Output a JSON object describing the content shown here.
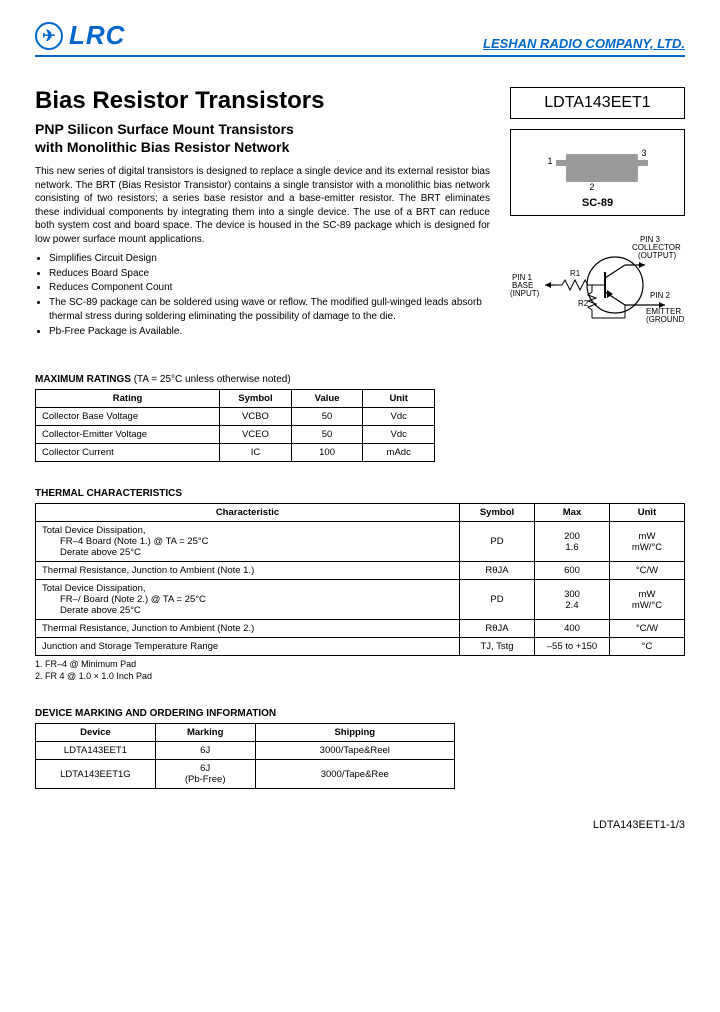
{
  "logo_text": "LRC",
  "company": "LESHAN RADIO COMPANY, LTD.",
  "title": "Bias Resistor Transistors",
  "subtitle1": "PNP Silicon Surface Mount Transistors",
  "subtitle2": "with Monolithic Bias Resistor Network",
  "part_number": "LDTA143EET1",
  "package_name": "SC-89",
  "body": "This new series of digital transistors is designed to replace a single device and its external resistor bias network. The BRT (Bias Resistor Transistor) contains a single transistor with a monolithic bias network consisting of two resistors; a series base resistor and a base-emitter resistor. The BRT eliminates these individual components by integrating them into a single device. The use of a BRT can reduce both system cost and board space. The device is housed in the SC-89 package which is designed for low power surface mount applications.",
  "bullets": [
    "Simplifies Circuit Design",
    "Reduces Board Space",
    "Reduces Component Count",
    "The SC-89 package can be soldered using wave or reflow. The modified gull-winged leads absorb thermal stress during soldering eliminating the possibility of damage to the die.",
    "Pb-Free Package is Available."
  ],
  "pin_labels": {
    "pin1a": "PIN 1",
    "pin1b": "BASE",
    "pin1c": "(INPUT)",
    "pin2a": "PIN 2",
    "pin2b": "EMITTER",
    "pin2c": "(GROUND)",
    "pin3a": "PIN 3",
    "pin3b": "COLLECTOR",
    "pin3c": "(OUTPUT)",
    "r1": "R1",
    "r2": "R2"
  },
  "ratings_title": "MAXIMUM RATINGS",
  "ratings_note": " (TA = 25°C unless otherwise noted)",
  "ratings_headers": [
    "Rating",
    "Symbol",
    "Value",
    "Unit"
  ],
  "ratings_rows": [
    [
      "Collector Base Voltage",
      "VCBO",
      "50",
      "Vdc"
    ],
    [
      "Collector-Emitter Voltage",
      "VCEO",
      "50",
      "Vdc"
    ],
    [
      "Collector Current",
      "IC",
      "100",
      "mAdc"
    ]
  ],
  "thermal_title": "THERMAL CHARACTERISTICS",
  "thermal_headers": [
    "Characteristic",
    "Symbol",
    "Max",
    "Unit"
  ],
  "thermal_rows": [
    {
      "c": "Total Device Dissipation,\n   FR–4 Board (Note 1.) @ TA = 25°C\n   Derate above 25°C",
      "s": "PD",
      "m": "200\n1.6",
      "u": "mW\nmW/°C"
    },
    {
      "c": "Thermal Resistance, Junction to Ambient (Note 1.)",
      "s": "RθJA",
      "m": "600",
      "u": "°C/W"
    },
    {
      "c": "Total Device Dissipation,\n   FR–/ Board (Note 2.) @ TA = 25°C\n   Derate above 25°C",
      "s": "PD",
      "m": "300\n2.4",
      "u": "mW\nmW/°C"
    },
    {
      "c": "Thermal Resistance, Junction to Ambient (Note 2.)",
      "s": "RθJA",
      "m": "400",
      "u": "°C/W"
    },
    {
      "c": "Junction and Storage Temperature Range",
      "s": "TJ, Tstg",
      "m": "–55 to +150",
      "u": "°C"
    }
  ],
  "footnote1": "1.  FR–4 @ Minimum Pad",
  "footnote2": "2.  FR  4 @ 1.0 × 1.0 Inch Pad",
  "marking_title": "DEVICE MARKING AND ORDERING INFORMATION",
  "marking_headers": [
    "Device",
    "Marking",
    "Shipping"
  ],
  "marking_rows": [
    [
      "LDTA143EET1",
      "6J",
      "3000/Tape&Reel"
    ],
    [
      "LDTA143EET1G",
      "6J\n(Pb-Free)",
      "3000/Tape&Ree"
    ]
  ],
  "footer": "LDTA143EET1-1/3",
  "colors": {
    "brand": "#0066cc"
  }
}
